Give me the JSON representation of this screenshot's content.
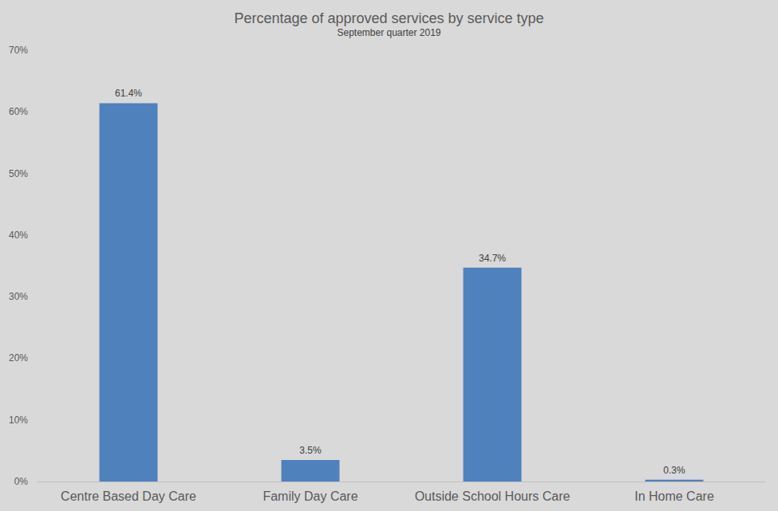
{
  "chart_data": {
    "type": "bar",
    "title": "Percentage of approved services by service type",
    "subtitle": "September quarter 2019",
    "categories": [
      "Centre Based Day Care",
      "Family Day Care",
      "Outside School Hours Care",
      "In Home Care"
    ],
    "values": [
      61.4,
      3.5,
      34.7,
      0.3
    ],
    "value_labels": [
      "61.4%",
      "3.5%",
      "34.7%",
      "0.3%"
    ],
    "color": "#4f81bd",
    "ylim": [
      0,
      70
    ],
    "yticks": [
      {
        "value": 0,
        "label": "0%"
      },
      {
        "value": 10,
        "label": "10%"
      },
      {
        "value": 20,
        "label": "20%"
      },
      {
        "value": 30,
        "label": "30%"
      },
      {
        "value": 40,
        "label": "40%"
      },
      {
        "value": 50,
        "label": "50%"
      },
      {
        "value": 60,
        "label": "60%"
      },
      {
        "value": 70,
        "label": "70%"
      }
    ],
    "grid": false,
    "data_labels": true
  }
}
